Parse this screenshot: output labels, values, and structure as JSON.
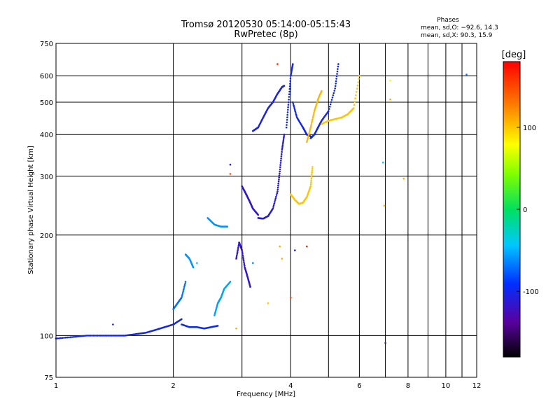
{
  "chart_data": {
    "type": "scatter",
    "title": "Tromsø 20120530 05:14:00-05:15:43",
    "subtitle": "RwPretec (8p)",
    "xlabel": "Frequency [MHz]",
    "ylabel": "Stationary phase Virtual Height [km]",
    "x_scale": "log",
    "y_scale": "log",
    "xlim": [
      1,
      12
    ],
    "ylim": [
      75,
      750
    ],
    "x_ticks": [
      1,
      2,
      4,
      6,
      8,
      10,
      12
    ],
    "x_tick_labels": [
      "1",
      "2",
      "4",
      "6",
      "8",
      "10",
      "12"
    ],
    "x_minor_gridlines": [
      3,
      5,
      7,
      9,
      11
    ],
    "y_ticks": [
      75,
      100,
      200,
      300,
      400,
      500,
      600,
      750
    ],
    "y_tick_labels": [
      "75",
      "100",
      "200",
      "300",
      "400",
      "500",
      "600",
      "750"
    ],
    "grid": true,
    "legend": {
      "title": "Phases",
      "lines": [
        "mean, sd,O: −92.6, 14.3",
        "mean, sd,X:  90.3, 15.9"
      ],
      "placement": "top-right"
    },
    "colorbar": {
      "label": "[deg]",
      "range": [
        -180,
        180
      ],
      "ticks": [
        100,
        0,
        -100
      ],
      "tick_labels": [
        "100",
        "0",
        "-100"
      ]
    },
    "traces": [
      {
        "x": [
          1.0,
          1.1,
          1.2,
          1.3,
          1.4,
          1.5,
          1.6,
          1.7,
          1.8,
          1.9,
          2.0,
          2.1
        ],
        "y": [
          98,
          99,
          100,
          100,
          100,
          100,
          101,
          102,
          104,
          106,
          108,
          112
        ],
        "phase": -100
      },
      {
        "x": [
          2.1,
          2.2,
          2.3,
          2.4,
          2.5,
          2.6
        ],
        "y": [
          108,
          106,
          106,
          105,
          106,
          107
        ],
        "phase": -95
      },
      {
        "x": [
          2.0,
          2.05,
          2.1,
          2.15
        ],
        "y": [
          120,
          125,
          130,
          145
        ],
        "phase": -70
      },
      {
        "x": [
          2.15,
          2.2,
          2.25
        ],
        "y": [
          175,
          170,
          160
        ],
        "phase": -60
      },
      {
        "x": [
          2.45,
          2.55,
          2.65,
          2.75
        ],
        "y": [
          225,
          215,
          212,
          212
        ],
        "phase": -60
      },
      {
        "x": [
          2.55,
          2.6,
          2.65,
          2.7,
          2.8
        ],
        "y": [
          115,
          125,
          130,
          138,
          145
        ],
        "phase": -55
      },
      {
        "x": [
          2.9,
          2.95,
          3.0,
          3.05,
          3.1,
          3.15
        ],
        "y": [
          170,
          190,
          180,
          160,
          150,
          140
        ],
        "phase": -115
      },
      {
        "x": [
          3.0,
          3.05,
          3.1,
          3.15,
          3.2,
          3.3
        ],
        "y": [
          280,
          270,
          260,
          250,
          240,
          230
        ],
        "phase": -115
      },
      {
        "x": [
          3.3,
          3.4,
          3.5,
          3.6,
          3.7,
          3.75,
          3.8,
          3.85
        ],
        "y": [
          225,
          224,
          228,
          240,
          270,
          310,
          360,
          400
        ],
        "phase": -110
      },
      {
        "x": [
          3.2,
          3.3,
          3.4,
          3.5,
          3.6,
          3.7,
          3.8,
          3.85
        ],
        "y": [
          410,
          420,
          450,
          480,
          500,
          530,
          555,
          560
        ],
        "phase": -105
      },
      {
        "x": [
          3.9,
          3.95,
          4.0,
          4.05
        ],
        "y": [
          420,
          500,
          600,
          650
        ],
        "phase": -100
      },
      {
        "x": [
          4.05,
          4.15,
          4.3,
          4.4,
          4.5
        ],
        "y": [
          500,
          450,
          420,
          400,
          395
        ],
        "phase": -100
      },
      {
        "x": [
          4.5,
          4.6,
          4.7,
          4.8,
          5.0,
          5.2,
          5.3
        ],
        "y": [
          390,
          400,
          420,
          440,
          470,
          550,
          650
        ],
        "phase": -100
      },
      {
        "x": [
          4.0,
          4.1,
          4.2,
          4.3,
          4.4,
          4.5,
          4.55
        ],
        "y": [
          265,
          255,
          248,
          250,
          260,
          280,
          320
        ],
        "phase": 100
      },
      {
        "x": [
          4.4,
          4.5,
          4.6,
          4.7,
          4.8
        ],
        "y": [
          380,
          420,
          470,
          510,
          540
        ],
        "phase": 105
      },
      {
        "x": [
          4.8,
          5.0,
          5.2,
          5.4,
          5.6,
          5.8,
          6.0
        ],
        "y": [
          430,
          440,
          445,
          450,
          460,
          480,
          600
        ],
        "phase": 100
      }
    ],
    "isolated_points": [
      {
        "x": 7.0,
        "y": 95,
        "phase": -110
      },
      {
        "x": 6.9,
        "y": 330,
        "phase": -40
      },
      {
        "x": 7.2,
        "y": 580,
        "phase": 80
      },
      {
        "x": 7.2,
        "y": 510,
        "phase": 110
      },
      {
        "x": 11.3,
        "y": 605,
        "phase": -70
      },
      {
        "x": 6.95,
        "y": 245,
        "phase": 110
      },
      {
        "x": 7.8,
        "y": 295,
        "phase": 110
      },
      {
        "x": 2.8,
        "y": 325,
        "phase": -115
      },
      {
        "x": 2.8,
        "y": 305,
        "phase": 150
      },
      {
        "x": 3.75,
        "y": 185,
        "phase": 110
      },
      {
        "x": 3.8,
        "y": 170,
        "phase": 110
      },
      {
        "x": 4.0,
        "y": 130,
        "phase": 150
      },
      {
        "x": 4.4,
        "y": 185,
        "phase": 170
      },
      {
        "x": 4.1,
        "y": 180,
        "phase": -110
      },
      {
        "x": 3.5,
        "y": 125,
        "phase": 100
      },
      {
        "x": 3.2,
        "y": 165,
        "phase": -60
      },
      {
        "x": 2.9,
        "y": 105,
        "phase": 110
      },
      {
        "x": 2.3,
        "y": 165,
        "phase": -40
      },
      {
        "x": 1.4,
        "y": 108,
        "phase": -110
      },
      {
        "x": 3.7,
        "y": 650,
        "phase": 160
      }
    ]
  }
}
